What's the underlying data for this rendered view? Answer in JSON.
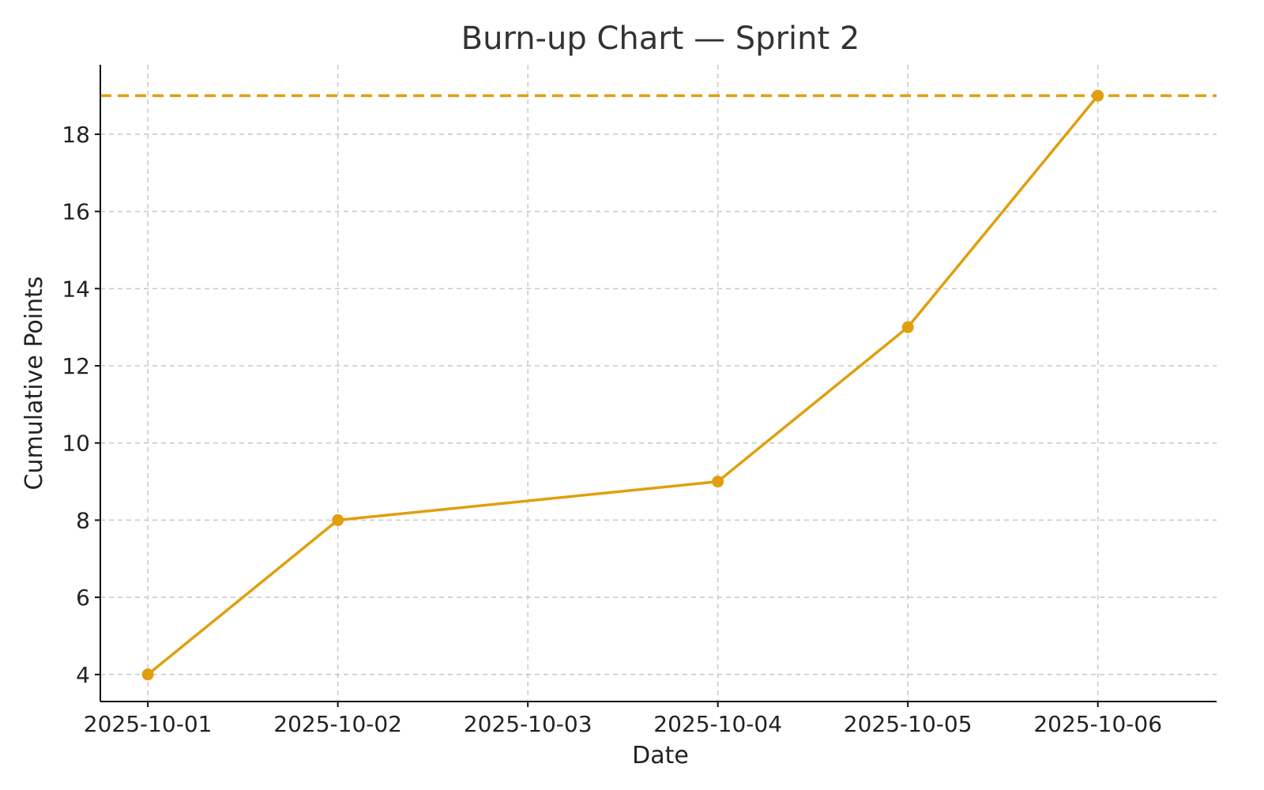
{
  "chart_data": {
    "type": "line",
    "title": "Burn-up Chart — Sprint 2",
    "xlabel": "Date",
    "ylabel": "Cumulative Points",
    "x": [
      "2025-10-01",
      "2025-10-02",
      "2025-10-04",
      "2025-10-05",
      "2025-10-06"
    ],
    "x_ticks": [
      "2025-10-01",
      "2025-10-02",
      "2025-10-03",
      "2025-10-04",
      "2025-10-05",
      "2025-10-06"
    ],
    "series": [
      {
        "values": [
          4,
          8,
          9,
          13,
          19
        ],
        "color": "#E09F0D",
        "markers": true
      }
    ],
    "reference_lines": [
      {
        "y": 19,
        "style": "dashed",
        "color": "#E09F0D"
      }
    ],
    "y_ticks": [
      4,
      6,
      8,
      10,
      12,
      14,
      16,
      18
    ],
    "ylim": [
      3.3,
      19.8
    ],
    "xlim": [
      "2025-09-30 18:00",
      "2025-10-06 15:00"
    ],
    "grid": true,
    "legend": "none"
  }
}
